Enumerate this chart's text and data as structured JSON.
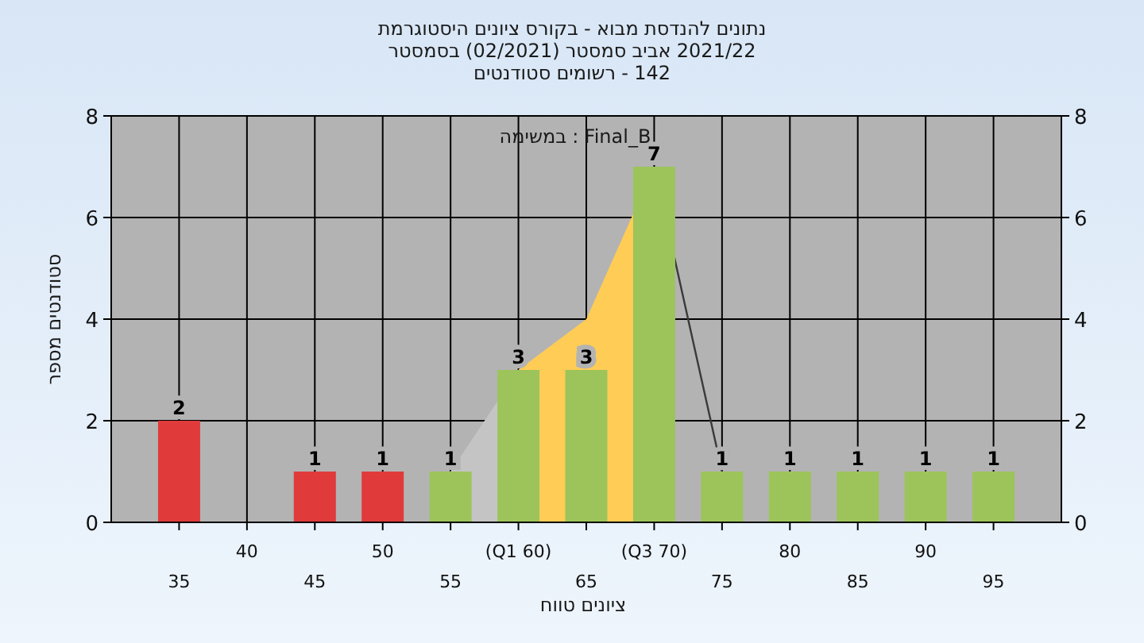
{
  "chart_data": {
    "type": "bar",
    "title": "היסטוגרמת ציונים בקורס - מבוא להנדסת נתונים",
    "subtitle": "בסמסטר (02/2021) סמסטר אביב 2021/22\nסטודנטים רשומים - 142",
    "xlabel": "טווח ציונים",
    "ylabel": "מספר סטודנטים",
    "categories": [
      "35",
      "40",
      "45",
      "50",
      "55",
      "(Q1 60)",
      "65",
      "(Q3 70)",
      "75",
      "80",
      "85",
      "90",
      "95"
    ],
    "series": [
      {
        "type": "area",
        "color": "#c4c4c4",
        "values": [
          null,
          null,
          null,
          null,
          1,
          3,
          null,
          null,
          null,
          null,
          null,
          null,
          null
        ]
      },
      {
        "type": "area",
        "color": "#ffcc55",
        "values": [
          null,
          null,
          null,
          null,
          null,
          3,
          4,
          7,
          null,
          null,
          null,
          null,
          null
        ]
      },
      {
        "type": "line",
        "color": "#3a3a3a",
        "values": [
          null,
          null,
          null,
          null,
          null,
          null,
          null,
          7,
          1,
          null,
          null,
          null,
          null
        ]
      },
      {
        "type": "bar",
        "colors": [
          "#e03a3a",
          "#e03a3a",
          "#e03a3a",
          "#e03a3a",
          "#9cc45a",
          "#9cc45a",
          "#9cc45a",
          "#9cc45a",
          "#9cc45a",
          "#9cc45a",
          "#9cc45a",
          "#9cc45a",
          "#9cc45a"
        ],
        "values": [
          2,
          0,
          1,
          1,
          1,
          3,
          3,
          7,
          1,
          1,
          1,
          1,
          1
        ],
        "value_labels": [
          "2",
          null,
          "1",
          "1",
          "1",
          "3",
          "3",
          "7",
          "1",
          "1",
          "1",
          "1",
          "1"
        ]
      }
    ],
    "ylim": [
      0,
      8
    ],
    "yticks": [
      0,
      2,
      4,
      6,
      8
    ],
    "y2lim": [
      0,
      8
    ],
    "y2ticks": [
      0,
      2,
      4,
      6,
      8
    ],
    "grid": true,
    "annotations": [
      "במשימה : Final_B"
    ]
  }
}
